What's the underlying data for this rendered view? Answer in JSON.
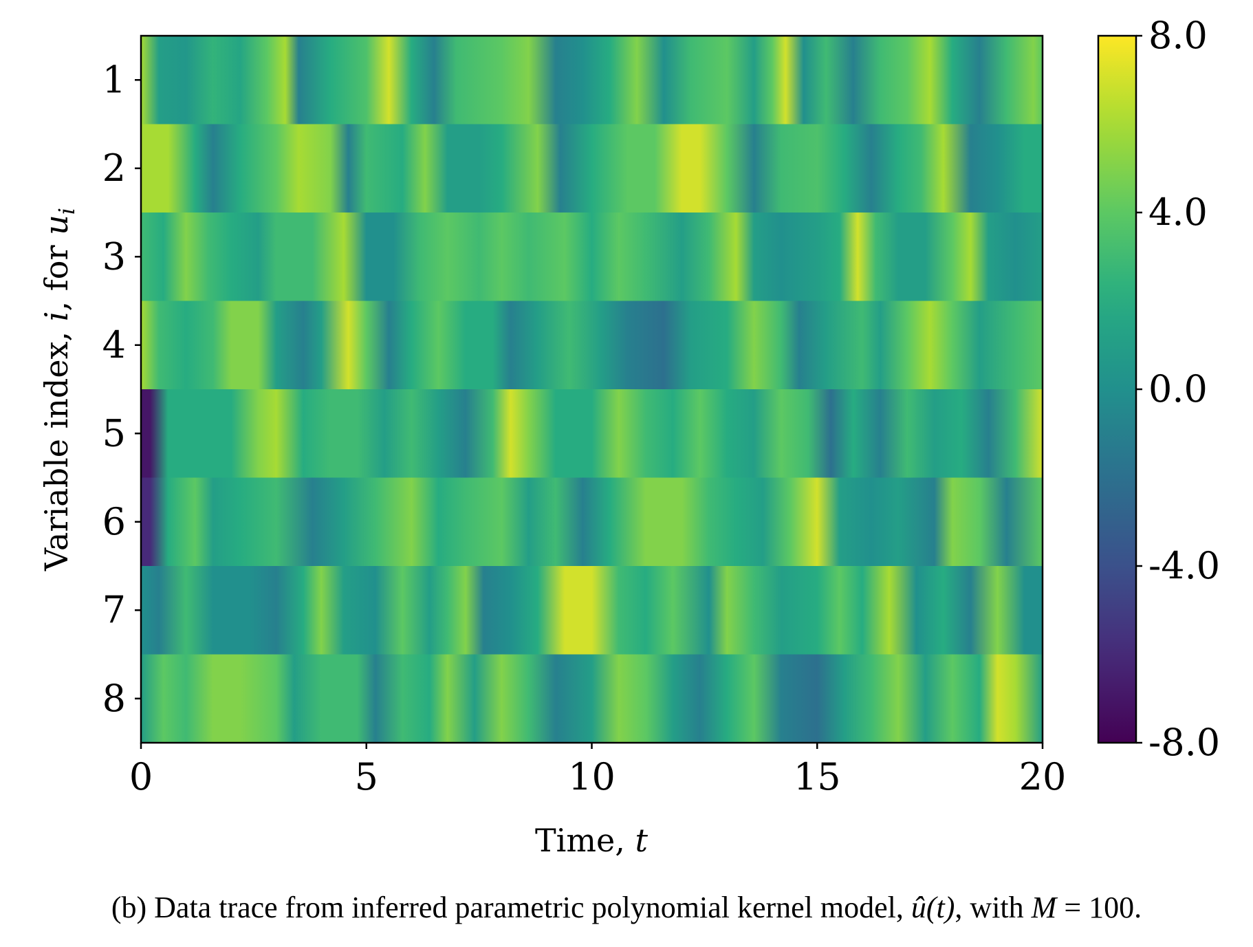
{
  "chart_data": {
    "type": "heatmap",
    "xlabel": "Time, t",
    "ylabel": "Variable index, i, for u_i",
    "xlim": [
      0,
      20
    ],
    "x_ticks": [
      0,
      5,
      10,
      15,
      20
    ],
    "rows": [
      1,
      2,
      3,
      4,
      5,
      6,
      7,
      8
    ],
    "colorbar": {
      "range": [
        -8.0,
        8.0
      ],
      "tick_values": [
        8.0,
        4.0,
        0.0,
        -4.0,
        -8.0
      ],
      "tick_labels": [
        "8.0",
        "4.0",
        "0.0",
        "-4.0",
        "-8.0"
      ],
      "colormap": "viridis"
    },
    "series": [
      {
        "name": "u1",
        "knots": [
          [
            0,
            6
          ],
          [
            0.4,
            1
          ],
          [
            1,
            0.5
          ],
          [
            1.6,
            2.5
          ],
          [
            2.2,
            1.5
          ],
          [
            2.8,
            4
          ],
          [
            3.2,
            6
          ],
          [
            3.5,
            -1
          ],
          [
            4.2,
            2
          ],
          [
            5,
            3.5
          ],
          [
            5.5,
            7
          ],
          [
            6,
            2
          ],
          [
            6.5,
            -1
          ],
          [
            7,
            3
          ],
          [
            8,
            4
          ],
          [
            8.6,
            5
          ],
          [
            9.2,
            -1
          ],
          [
            9.8,
            0
          ],
          [
            10.4,
            2
          ],
          [
            11,
            5
          ],
          [
            11.6,
            0
          ],
          [
            12.2,
            3
          ],
          [
            13,
            4
          ],
          [
            13.6,
            1
          ],
          [
            14,
            4
          ],
          [
            14.3,
            7
          ],
          [
            14.7,
            0
          ],
          [
            15.2,
            3
          ],
          [
            15.8,
            -1
          ],
          [
            16.4,
            3
          ],
          [
            17,
            4
          ],
          [
            17.5,
            6
          ],
          [
            18,
            2
          ],
          [
            18.6,
            -1
          ],
          [
            19.2,
            3
          ],
          [
            19.8,
            5
          ],
          [
            20,
            4
          ]
        ]
      },
      {
        "name": "u2",
        "knots": [
          [
            0,
            6
          ],
          [
            0.6,
            6
          ],
          [
            1.2,
            2
          ],
          [
            1.6,
            -1
          ],
          [
            2.2,
            2
          ],
          [
            3,
            4
          ],
          [
            3.5,
            6
          ],
          [
            4.2,
            5
          ],
          [
            4.6,
            -1
          ],
          [
            5,
            3
          ],
          [
            5.8,
            2
          ],
          [
            6.3,
            5
          ],
          [
            6.8,
            1
          ],
          [
            7.5,
            1
          ],
          [
            8,
            2
          ],
          [
            8.8,
            5
          ],
          [
            9.3,
            -1
          ],
          [
            10,
            2
          ],
          [
            10.8,
            4
          ],
          [
            11.4,
            4
          ],
          [
            12,
            7
          ],
          [
            12.4,
            7
          ],
          [
            13,
            4
          ],
          [
            13.6,
            -1
          ],
          [
            14.2,
            3
          ],
          [
            15,
            3.5
          ],
          [
            15.6,
            2
          ],
          [
            16.2,
            -1
          ],
          [
            16.8,
            2
          ],
          [
            17.3,
            3
          ],
          [
            17.8,
            6
          ],
          [
            18.4,
            -1
          ],
          [
            19,
            0
          ],
          [
            19.6,
            2
          ],
          [
            20,
            2
          ]
        ]
      },
      {
        "name": "u3",
        "knots": [
          [
            0,
            3
          ],
          [
            0.5,
            2
          ],
          [
            1,
            5
          ],
          [
            1.5,
            3
          ],
          [
            2,
            2
          ],
          [
            2.6,
            1
          ],
          [
            3,
            3
          ],
          [
            3.8,
            3
          ],
          [
            4.5,
            6
          ],
          [
            5,
            0
          ],
          [
            5.6,
            0
          ],
          [
            6.2,
            3
          ],
          [
            6.8,
            4
          ],
          [
            7.5,
            3
          ],
          [
            8,
            4
          ],
          [
            8.6,
            3
          ],
          [
            9.4,
            4
          ],
          [
            10,
            2
          ],
          [
            10.6,
            4
          ],
          [
            11.2,
            3
          ],
          [
            12,
            1
          ],
          [
            12.6,
            3
          ],
          [
            13.2,
            6
          ],
          [
            13.6,
            1
          ],
          [
            14.2,
            0
          ],
          [
            15,
            1
          ],
          [
            15.5,
            2
          ],
          [
            15.9,
            7
          ],
          [
            16.3,
            3
          ],
          [
            16.8,
            1
          ],
          [
            17.4,
            1
          ],
          [
            18,
            4
          ],
          [
            18.4,
            6
          ],
          [
            18.8,
            1
          ],
          [
            19.4,
            0
          ],
          [
            20,
            1
          ]
        ]
      },
      {
        "name": "u4",
        "knots": [
          [
            0,
            6
          ],
          [
            0.4,
            3
          ],
          [
            1,
            2
          ],
          [
            1.6,
            3
          ],
          [
            2,
            5
          ],
          [
            2.6,
            5
          ],
          [
            3,
            1
          ],
          [
            3.6,
            -1
          ],
          [
            4,
            1
          ],
          [
            4.6,
            7
          ],
          [
            5,
            4
          ],
          [
            5.5,
            -1
          ],
          [
            6,
            2
          ],
          [
            6.6,
            4
          ],
          [
            7.2,
            2
          ],
          [
            7.8,
            2
          ],
          [
            8.2,
            -1
          ],
          [
            8.8,
            1
          ],
          [
            9.5,
            3
          ],
          [
            10.2,
            1
          ],
          [
            10.8,
            -1
          ],
          [
            11.6,
            -2
          ],
          [
            12.2,
            1
          ],
          [
            13,
            2
          ],
          [
            13.6,
            5
          ],
          [
            14.2,
            3
          ],
          [
            14.6,
            -1
          ],
          [
            15.2,
            1
          ],
          [
            16,
            3
          ],
          [
            16.4,
            1
          ],
          [
            17,
            4
          ],
          [
            17.5,
            6
          ],
          [
            18,
            4
          ],
          [
            18.6,
            1
          ],
          [
            19.4,
            3
          ],
          [
            20,
            4
          ]
        ]
      },
      {
        "name": "u5",
        "knots": [
          [
            0,
            -7
          ],
          [
            0.2,
            -7
          ],
          [
            0.6,
            2
          ],
          [
            1.2,
            2
          ],
          [
            2,
            2
          ],
          [
            2.6,
            5
          ],
          [
            3,
            6
          ],
          [
            3.6,
            2
          ],
          [
            4.2,
            3
          ],
          [
            4.8,
            3
          ],
          [
            5.4,
            1
          ],
          [
            6,
            3
          ],
          [
            6.6,
            1
          ],
          [
            7.2,
            -1
          ],
          [
            7.8,
            3
          ],
          [
            8.2,
            7
          ],
          [
            8.6,
            5
          ],
          [
            9.2,
            2
          ],
          [
            10,
            2
          ],
          [
            10.6,
            5
          ],
          [
            11.2,
            3
          ],
          [
            11.8,
            2
          ],
          [
            12.4,
            4
          ],
          [
            13,
            2
          ],
          [
            13.6,
            1
          ],
          [
            14.2,
            4
          ],
          [
            14.8,
            3
          ],
          [
            15.3,
            -2
          ],
          [
            15.8,
            2
          ],
          [
            16.4,
            -1
          ],
          [
            17,
            3
          ],
          [
            17.6,
            1
          ],
          [
            18.2,
            2
          ],
          [
            18.8,
            -1
          ],
          [
            19.4,
            3
          ],
          [
            20,
            7
          ]
        ]
      },
      {
        "name": "u6",
        "knots": [
          [
            0,
            -6
          ],
          [
            0.2,
            -6
          ],
          [
            0.6,
            2
          ],
          [
            1.2,
            4
          ],
          [
            1.6,
            1
          ],
          [
            2.2,
            2
          ],
          [
            3,
            3
          ],
          [
            3.8,
            -1
          ],
          [
            4.5,
            1
          ],
          [
            5.2,
            3
          ],
          [
            6,
            5
          ],
          [
            6.6,
            2
          ],
          [
            7.2,
            3
          ],
          [
            8,
            4
          ],
          [
            8.6,
            1
          ],
          [
            9.2,
            3
          ],
          [
            9.8,
            -1
          ],
          [
            10.4,
            2
          ],
          [
            11.2,
            5
          ],
          [
            12,
            5
          ],
          [
            12.6,
            3
          ],
          [
            13.2,
            2
          ],
          [
            13.8,
            1
          ],
          [
            14.4,
            4
          ],
          [
            15,
            7
          ],
          [
            15.5,
            1
          ],
          [
            16.2,
            0
          ],
          [
            16.8,
            1
          ],
          [
            17.6,
            -1
          ],
          [
            18,
            5
          ],
          [
            18.6,
            4
          ],
          [
            19.2,
            -1
          ],
          [
            20,
            4
          ]
        ]
      },
      {
        "name": "u7",
        "knots": [
          [
            0,
            0
          ],
          [
            0.4,
            -1
          ],
          [
            1,
            3
          ],
          [
            1.6,
            0
          ],
          [
            2.4,
            0
          ],
          [
            3,
            -1
          ],
          [
            3.6,
            2
          ],
          [
            4,
            5
          ],
          [
            4.5,
            1
          ],
          [
            5.2,
            0
          ],
          [
            5.8,
            4
          ],
          [
            6.4,
            1
          ],
          [
            6.8,
            3
          ],
          [
            7.2,
            5
          ],
          [
            7.6,
            -1
          ],
          [
            8.2,
            0
          ],
          [
            8.8,
            2
          ],
          [
            9.4,
            7
          ],
          [
            10,
            7
          ],
          [
            10.6,
            3
          ],
          [
            11.2,
            2
          ],
          [
            11.8,
            4
          ],
          [
            12.6,
            0
          ],
          [
            13,
            5
          ],
          [
            13.6,
            3
          ],
          [
            14.2,
            1
          ],
          [
            15,
            2
          ],
          [
            15.5,
            4
          ],
          [
            16,
            2
          ],
          [
            16.6,
            6
          ],
          [
            17.2,
            0
          ],
          [
            17.8,
            2
          ],
          [
            18.4,
            -1
          ],
          [
            19,
            5
          ],
          [
            19.6,
            0
          ],
          [
            20,
            0
          ]
        ]
      },
      {
        "name": "u8",
        "knots": [
          [
            0,
            1
          ],
          [
            0.5,
            4
          ],
          [
            1,
            3
          ],
          [
            1.6,
            5
          ],
          [
            2.2,
            5
          ],
          [
            3,
            4
          ],
          [
            3.4,
            1
          ],
          [
            4,
            3
          ],
          [
            4.8,
            3
          ],
          [
            5.2,
            -1
          ],
          [
            5.8,
            3
          ],
          [
            6.4,
            2
          ],
          [
            6.8,
            5
          ],
          [
            7.4,
            1
          ],
          [
            8,
            5
          ],
          [
            8.6,
            3
          ],
          [
            9.2,
            -1
          ],
          [
            10,
            1
          ],
          [
            10.6,
            5
          ],
          [
            11.2,
            4
          ],
          [
            11.8,
            1
          ],
          [
            12.4,
            -1
          ],
          [
            13,
            2
          ],
          [
            13.6,
            4
          ],
          [
            14.2,
            -1
          ],
          [
            15,
            -2
          ],
          [
            15.6,
            1
          ],
          [
            16.2,
            3
          ],
          [
            16.8,
            5
          ],
          [
            17.4,
            1
          ],
          [
            18,
            4
          ],
          [
            18.6,
            2
          ],
          [
            19,
            7
          ],
          [
            19.4,
            6
          ],
          [
            20,
            1
          ]
        ]
      }
    ]
  },
  "caption": {
    "prefix": "(b) Data trace from inferred parametric polynomial kernel model, ",
    "formula": "û(t)",
    "middle": ", with ",
    "m_symbol": "M",
    "equals": " = 100."
  }
}
